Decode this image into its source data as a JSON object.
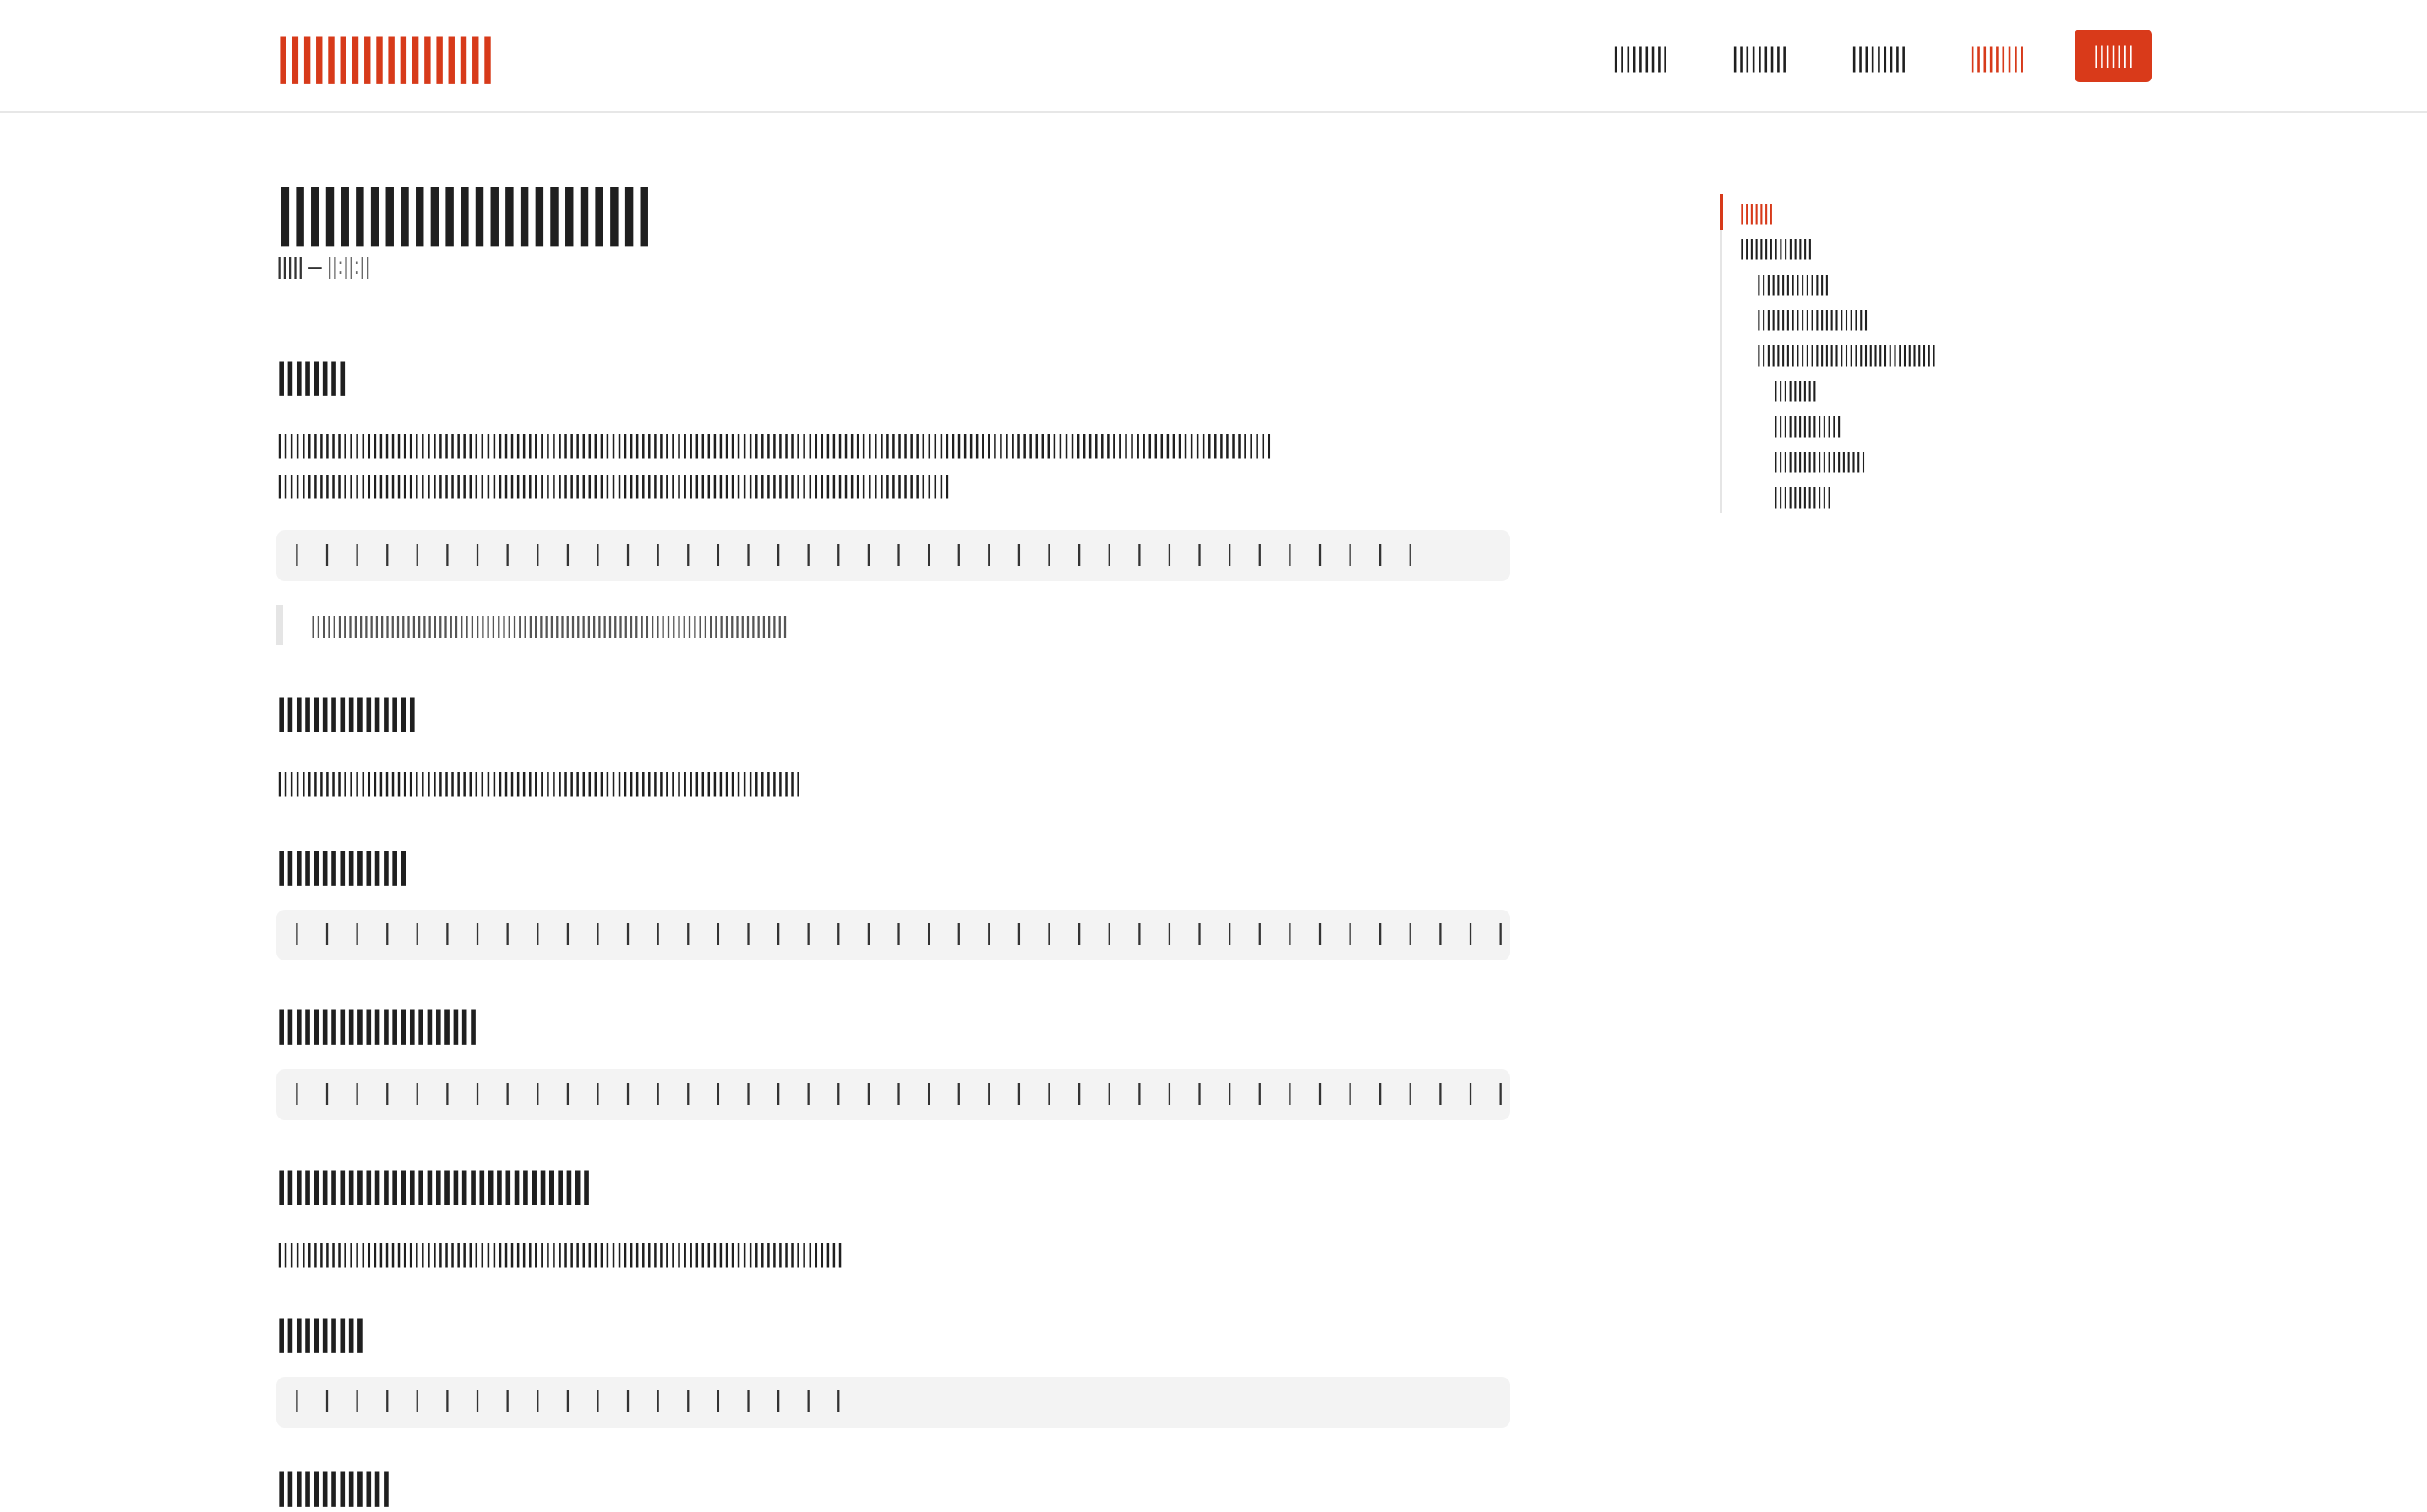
{
  "header": {
    "logo": "||||||||||||||||||",
    "nav": [
      "|||||||||",
      "|||||||||",
      "|||||||||",
      "|||||||||"
    ],
    "cta": "|||||||"
  },
  "article": {
    "title": "|||||||||||||||||||||||||",
    "meta_author": "|||||",
    "meta_sep": "–",
    "meta_date": "||:||:||",
    "sections": [
      {
        "heading": "||||||||",
        "para_line1": "|||||||||||||||||||||||||||||||||||||||||||||||||||||||||||||||||||||||||||||||||||||||||||||||||||||||||||||||||||||||||||||||||||||||||||||||||||||||||||||||||||||||",
        "para_line2": "|||||||||||||||||||||||||||||||||||||||||||||||||||||||||||||||||||||||||||||||||||||||||||||||||||||||||||||||||",
        "code": "| | | | | | | | | | | | | | | | | | | | | | | | | | | | | | | | | | | | | |",
        "quote": "||||||||||||||||||||||||||||||||||||||||||||||||||||||||||||||||||||||||||||||||||||||||||"
      },
      {
        "heading": "||||||||||||||||",
        "para": "||||||||||||||||||||||||||||||||||||||||||||||||||||||||||||||||||||||||||||||||||||||||"
      },
      {
        "heading": "|||||||||||||||",
        "code": "| | | | | | | | | | | | | | | | | | | | | | | | | | | | | | | | | | | | | | | | | | | | | | | | | | | | | | | | | | | | | | | | |"
      },
      {
        "heading": "|||||||||||||||||||||||",
        "code": "| | | | | | | | | | | | | | | | | | | | | | | | | | | | | | | | | | | | | | | | | | | | | | | | | | | | | | | |"
      },
      {
        "heading": "||||||||||||||||||||||||||||||||||||",
        "para": "|||||||||||||||||||||||||||||||||||||||||||||||||||||||||||||||||||||||||||||||||||||||||||||||"
      },
      {
        "heading": "||||||||||",
        "code": "| | | | | | | | | | | | | | | | | | |"
      },
      {
        "heading": "|||||||||||||"
      }
    ]
  },
  "toc": {
    "items": [
      {
        "label": "|||||||",
        "level": 0,
        "active": true
      },
      {
        "label": "|||||||||||||||",
        "level": 0
      },
      {
        "label": "|||||||||||||||",
        "level": 1
      },
      {
        "label": "|||||||||||||||||||||||",
        "level": 1
      },
      {
        "label": "|||||||||||||||||||||||||||||||||||||",
        "level": 1
      },
      {
        "label": "|||||||||",
        "level": 2
      },
      {
        "label": "||||||||||||||",
        "level": 2
      },
      {
        "label": "|||||||||||||||||||",
        "level": 2
      },
      {
        "label": "||||||||||||",
        "level": 2
      }
    ]
  },
  "colors": {
    "accent": "#d73a1a",
    "text": "#1f1f1f",
    "code_bg": "#f3f3f3",
    "border": "#e7e7e7"
  }
}
